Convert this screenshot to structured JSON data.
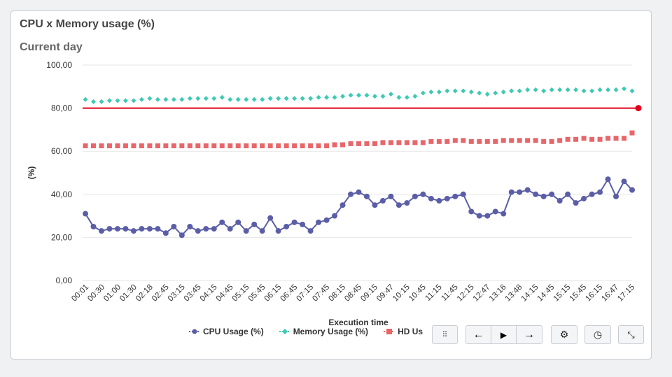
{
  "title": "CPU x Memory usage (%)",
  "subtitle": "Current day",
  "chart_data": {
    "type": "line",
    "xlabel": "Execution time",
    "ylabel": "(%)",
    "ylim": [
      0,
      100
    ],
    "yticks": [
      "0,00",
      "20,00",
      "40,00",
      "60,00",
      "80,00",
      "100,00"
    ],
    "xtick_labels": [
      "00:01",
      "00:30",
      "01:00",
      "01:30",
      "02:18",
      "02:45",
      "03:15",
      "03:45",
      "04:15",
      "04:45",
      "05:15",
      "05:45",
      "06:15",
      "06:45",
      "07:15",
      "07:45",
      "08:15",
      "08:45",
      "09:15",
      "09:47",
      "10:15",
      "10:45",
      "11:15",
      "11:45",
      "12:15",
      "12:47",
      "13:16",
      "13:48",
      "14:15",
      "14:45",
      "15:15",
      "15:45",
      "16:15",
      "16:47",
      "17:15"
    ],
    "threshold": {
      "value": 80,
      "color": "#e3001b"
    },
    "series": [
      {
        "name": "CPU Usage (%)",
        "color": "#5b5ea6",
        "marker": "circle",
        "values": [
          31,
          25,
          23,
          24,
          24,
          24,
          23,
          24,
          24,
          24,
          22,
          25,
          21,
          25,
          23,
          24,
          24,
          27,
          24,
          27,
          23,
          26,
          23,
          29,
          23,
          25,
          27,
          26,
          23,
          27,
          28,
          30,
          35,
          40,
          41,
          39,
          35,
          37,
          39,
          35,
          36,
          39,
          40,
          38,
          37,
          38,
          39,
          40,
          32,
          30,
          30,
          32,
          31,
          41,
          41,
          42,
          40,
          39,
          40,
          37,
          40,
          36,
          38,
          40,
          41,
          47,
          39,
          46,
          42
        ]
      },
      {
        "name": "Memory Usage (%)",
        "color": "#3ec9b4",
        "marker": "diamond",
        "values": [
          84,
          83,
          83,
          83.5,
          83.5,
          83.5,
          83.5,
          84,
          84.5,
          84,
          84,
          84,
          84,
          84.5,
          84.5,
          84.5,
          84.5,
          85,
          84,
          84,
          84,
          84,
          84,
          84.5,
          84.5,
          84.5,
          84.5,
          84.5,
          84.5,
          85,
          85,
          85,
          85.5,
          86,
          86,
          86,
          85.5,
          85.5,
          86.5,
          85,
          85,
          85.5,
          87,
          87.5,
          87.5,
          88,
          88,
          88,
          87.5,
          87,
          86.5,
          87,
          87.5,
          88,
          88,
          88.5,
          88.5,
          88,
          88.5,
          88.5,
          88.5,
          88.5,
          88,
          88,
          88.5,
          88.5,
          88.5,
          89,
          88
        ]
      },
      {
        "name": "HD Usage (%)",
        "legend_label": "HD Us",
        "color": "#e8666a",
        "marker": "square",
        "values": [
          62.5,
          62.5,
          62.5,
          62.5,
          62.5,
          62.5,
          62.5,
          62.5,
          62.5,
          62.5,
          62.5,
          62.5,
          62.5,
          62.5,
          62.5,
          62.5,
          62.5,
          62.5,
          62.5,
          62.5,
          62.5,
          62.5,
          62.5,
          62.5,
          62.5,
          62.5,
          62.5,
          62.5,
          62.5,
          62.5,
          62.5,
          63,
          63,
          63.5,
          63.5,
          63.5,
          63.5,
          64,
          64,
          64,
          64,
          64,
          64,
          64.5,
          64.5,
          64.5,
          65,
          65,
          64.5,
          64.5,
          64.5,
          64.5,
          65,
          65,
          65,
          65,
          65,
          64.5,
          64.5,
          65,
          65.5,
          65.5,
          66,
          65.5,
          65.5,
          66,
          66,
          66,
          68.5
        ]
      }
    ]
  },
  "toolbar": {
    "drag_icon": "⠿",
    "prev_icon": "←",
    "play_icon": "▶",
    "next_icon": "→",
    "settings_icon": "⚙",
    "history_icon": "◷",
    "collapse_icon": "⤡"
  }
}
